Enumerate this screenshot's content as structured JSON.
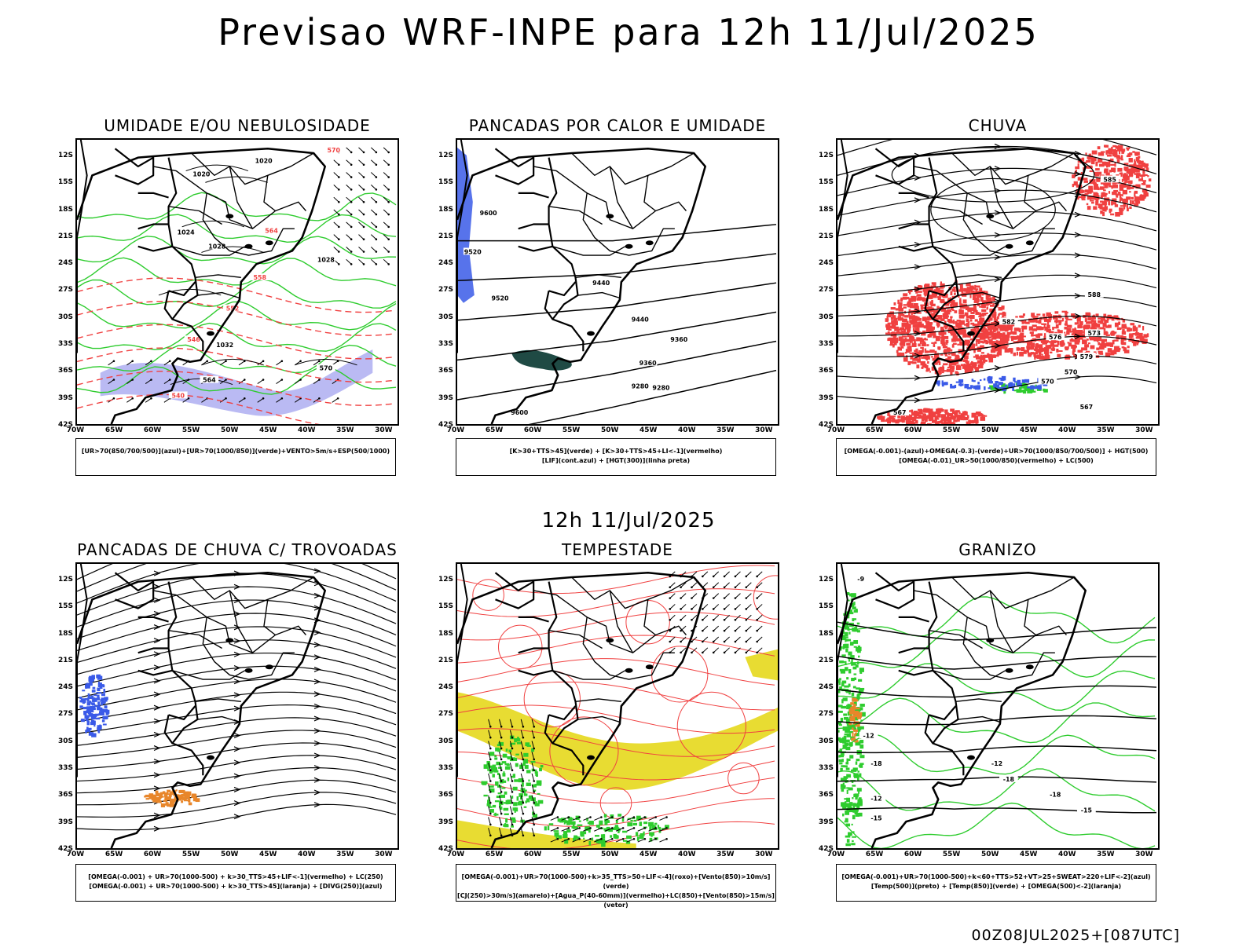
{
  "title": "Previsao WRF-INPE  para 12h 11/Jul/2025",
  "middle_title": "12h 11/Jul/2025",
  "footer": "00Z08JUL2025+[087UTC]",
  "lat_labels": [
    "12S",
    "15S",
    "18S",
    "21S",
    "24S",
    "27S",
    "30S",
    "33S",
    "36S",
    "39S",
    "42S"
  ],
  "lon_labels": [
    "70W",
    "65W",
    "60W",
    "55W",
    "50W",
    "45W",
    "40W",
    "35W",
    "30W"
  ],
  "colors": {
    "blue": "#3a5ae8",
    "green": "#2ecc2e",
    "red": "#f04040",
    "yellow": "#e8dc32",
    "orange": "#e8862a",
    "dark_teal": "#1f4a44",
    "lavender": "#a9a9f0"
  },
  "panels": [
    {
      "id": "p1",
      "title": "UMIDADE E/OU NEBULOSIDADE",
      "legend": [
        "[UR>70(850/700/500)](azul)+[UR>70(1000/850)](verde)+VENTO>5m/s+ESP(500/1000)"
      ],
      "contour_labels": [
        "1020",
        "1020",
        "1024",
        "1028",
        "1028",
        "1032",
        "570",
        "564",
        "558",
        "552",
        "546",
        "540"
      ]
    },
    {
      "id": "p2",
      "title": "PANCADAS POR CALOR E UMIDADE",
      "legend": [
        "[K>30+TTS>45](verde) + [K>30+TTS>45+LI<-1](vermelho)",
        "[LIF](cont.azul) + [HGT(300)](linha preta)"
      ],
      "contour_labels": [
        "9600",
        "9520",
        "9520",
        "9440",
        "9440",
        "9360",
        "9360",
        "9280",
        "9280",
        "9600"
      ]
    },
    {
      "id": "p3",
      "title": "CHUVA",
      "legend": [
        "[OMEGA(-0.001)-(azul)+OMEGA(-0.3)-(verde)+UR>70(1000/850/700/500)] + HGT(500)",
        "[OMEGA(-0.01)_UR>50(1000/850)(vermelho) + LC(500)"
      ],
      "contour_labels": [
        "588",
        "582",
        "576",
        "570",
        "567",
        "585",
        "579",
        "573",
        "570",
        "567"
      ]
    },
    {
      "id": "p4",
      "title": "PANCADAS DE CHUVA C/ TROVOADAS",
      "legend": [
        "[OMEGA(-0.001) + UR>70(1000-500) + k>30_TTS>45+LIF<-1](vermelho) + LC(250)",
        "[OMEGA(-0.001) + UR>70(1000-500) + k>30_TTS>45](laranja) + [DIVG(250)](azul)"
      ],
      "contour_labels": []
    },
    {
      "id": "p5",
      "title": "TEMPESTADE",
      "legend": [
        "[OMEGA(-0.001)+UR>70(1000-500)+k>35_TTS>50+LIF<-4](roxo)+[Vento(850)>10m/s](verde)",
        "[CJ(250)>30m/s](amarelo)+[Agua_P(40-60mm)](vermelho)+LC(850)+[Vento(850)>15m/s](vetor)"
      ],
      "contour_labels": []
    },
    {
      "id": "p6",
      "title": "GRANIZO",
      "legend": [
        "[OMEGA(-0.001)+UR>70(1000-500)+k<60+TTS>52+VT>25+SWEAT>220+LIF<-2](azul)",
        "[Temp(500)](preto) + [Temp(850)](verde) + [OMEGA(500)<-2](laranja)"
      ],
      "contour_labels": [
        "-12",
        "-12",
        "-15",
        "-18",
        "-18",
        "-18",
        "-15",
        "-12",
        "-9"
      ]
    }
  ]
}
